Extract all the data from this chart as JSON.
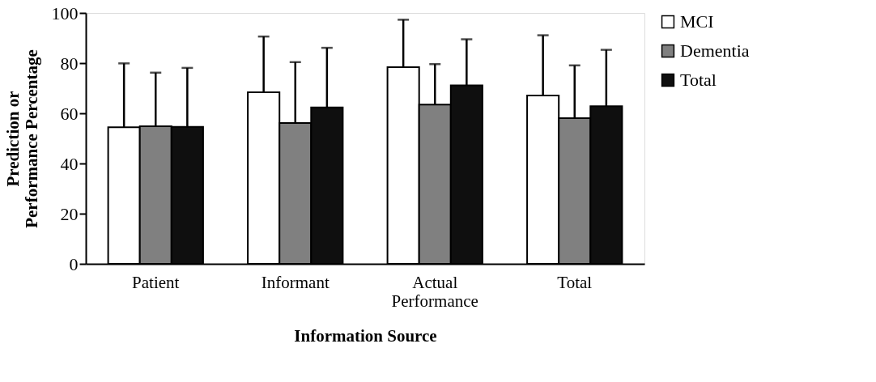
{
  "chart_data": {
    "type": "bar",
    "xlabel": "Information Source",
    "ylabel": "Prediction or Performance Percentage",
    "categories": [
      "Patient",
      "Informant",
      "Actual Performance",
      "Total"
    ],
    "series": [
      {
        "name": "MCI",
        "color": "#ffffff",
        "values": [
          54.4,
          68.4,
          78.4,
          67.1
        ],
        "errors": [
          [
            54.4,
            79.9
          ],
          [
            68.4,
            90.6
          ],
          [
            78.4,
            97.3
          ],
          [
            67.1,
            91.1
          ]
        ]
      },
      {
        "name": "Dementia",
        "color": "#808080",
        "values": [
          54.8,
          56.1,
          63.5,
          58.1
        ],
        "errors": [
          [
            54.8,
            76.2
          ],
          [
            56.1,
            80.4
          ],
          [
            63.5,
            79.6
          ],
          [
            58.1,
            79.1
          ]
        ]
      },
      {
        "name": "Total",
        "color": "#0f0f0f",
        "values": [
          54.6,
          62.3,
          71.1,
          62.8
        ],
        "errors": [
          [
            54.6,
            78.1
          ],
          [
            62.3,
            86.1
          ],
          [
            71.1,
            89.5
          ],
          [
            62.8,
            85.3
          ]
        ]
      }
    ],
    "ylim": [
      0,
      100
    ],
    "yticks": [
      0,
      20,
      40,
      60,
      80,
      100
    ],
    "grid": false,
    "legend": "right"
  }
}
